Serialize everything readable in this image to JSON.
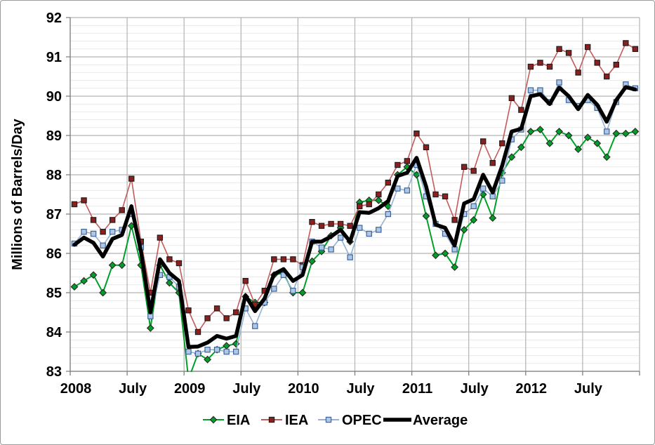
{
  "chart_data": {
    "type": "line",
    "title": "",
    "ylabel": "Millions of Barrels/Day",
    "xlabel": "",
    "ylim": [
      83,
      92
    ],
    "y_major_ticks": [
      "92",
      "91",
      "90",
      "89",
      "88",
      "87",
      "86",
      "85",
      "84",
      "83"
    ],
    "y_minor_step": 0.2,
    "grid": "major-and-minor-horizontal, major-vertical",
    "legend_position": "bottom-center",
    "x_tick_labels": [
      "2008",
      "July",
      "2009",
      "July",
      "2010",
      "July",
      "2011",
      "July",
      "2012",
      "July"
    ],
    "x_months": [
      "2008-01",
      "2008-02",
      "2008-03",
      "2008-04",
      "2008-05",
      "2008-06",
      "2008-07",
      "2008-08",
      "2008-09",
      "2008-10",
      "2008-11",
      "2008-12",
      "2009-01",
      "2009-02",
      "2009-03",
      "2009-04",
      "2009-05",
      "2009-06",
      "2009-07",
      "2009-08",
      "2009-09",
      "2009-10",
      "2009-11",
      "2009-12",
      "2010-01",
      "2010-02",
      "2010-03",
      "2010-04",
      "2010-05",
      "2010-06",
      "2010-07",
      "2010-08",
      "2010-09",
      "2010-10",
      "2010-11",
      "2010-12",
      "2011-01",
      "2011-02",
      "2011-03",
      "2011-04",
      "2011-05",
      "2011-06",
      "2011-07",
      "2011-08",
      "2011-09",
      "2011-10",
      "2011-11",
      "2011-12",
      "2012-01",
      "2012-02",
      "2012-03",
      "2012-04",
      "2012-05",
      "2012-06",
      "2012-07",
      "2012-08",
      "2012-09",
      "2012-10",
      "2012-11",
      "2012-12"
    ],
    "series": [
      {
        "name": "EIA",
        "marker": "diamond",
        "line_color": "#00A028",
        "marker_fill": "#00A028",
        "marker_stroke": "#2d2d2d",
        "line_width": 2,
        "values": [
          85.15,
          85.3,
          85.45,
          85.0,
          85.7,
          85.7,
          86.7,
          85.7,
          84.1,
          85.7,
          85.25,
          85.0,
          82.8,
          83.45,
          83.3,
          83.55,
          83.65,
          83.7,
          84.9,
          84.75,
          84.75,
          85.45,
          85.5,
          85.0,
          85.0,
          85.8,
          86.05,
          86.45,
          86.65,
          86.3,
          87.3,
          87.35,
          87.35,
          87.2,
          88.0,
          88.2,
          88.0,
          86.95,
          85.95,
          86.0,
          85.65,
          86.6,
          86.85,
          87.5,
          86.9,
          88.05,
          88.45,
          88.7,
          89.1,
          89.15,
          88.8,
          89.1,
          89.0,
          88.65,
          88.95,
          88.8,
          88.45,
          89.05,
          89.05,
          89.1
        ]
      },
      {
        "name": "IEA",
        "marker": "square",
        "line_color": "#C45B5B",
        "marker_fill": "#8E1F1F",
        "marker_stroke": "#1f1f1f",
        "line_width": 1.6,
        "values": [
          87.25,
          87.35,
          86.85,
          86.55,
          86.85,
          87.1,
          87.9,
          86.3,
          85.0,
          86.4,
          85.85,
          85.75,
          84.55,
          84.0,
          84.35,
          84.6,
          84.35,
          84.5,
          85.3,
          84.7,
          85.05,
          85.85,
          85.85,
          85.85,
          85.7,
          86.8,
          86.7,
          86.75,
          86.75,
          86.7,
          87.2,
          87.25,
          87.5,
          87.8,
          88.25,
          88.35,
          89.05,
          88.7,
          87.5,
          87.45,
          86.85,
          88.2,
          88.1,
          88.85,
          88.3,
          88.8,
          89.95,
          89.65,
          90.75,
          90.85,
          90.75,
          91.2,
          91.1,
          90.6,
          91.25,
          90.85,
          90.5,
          90.8,
          91.35,
          91.2
        ]
      },
      {
        "name": "OPEC",
        "marker": "square",
        "line_color": "#94B2D6",
        "marker_fill": "#AEC7E4",
        "marker_stroke": "#3C649B",
        "line_width": 1.6,
        "values": [
          86.25,
          86.55,
          86.5,
          86.2,
          86.55,
          86.6,
          87.0,
          86.15,
          84.4,
          85.45,
          85.4,
          85.15,
          83.5,
          83.45,
          83.55,
          83.55,
          83.5,
          83.5,
          84.6,
          84.15,
          84.75,
          85.1,
          85.45,
          85.05,
          85.65,
          86.3,
          86.15,
          86.1,
          86.4,
          85.9,
          86.65,
          86.5,
          86.6,
          87.0,
          87.65,
          87.6,
          88.25,
          87.45,
          86.75,
          86.5,
          86.1,
          87.0,
          87.2,
          87.65,
          87.45,
          87.85,
          88.9,
          89.15,
          90.15,
          90.15,
          89.85,
          90.35,
          89.9,
          89.75,
          89.9,
          89.7,
          89.1,
          89.85,
          90.3,
          90.2
        ]
      },
      {
        "name": "Average",
        "marker": "none",
        "line_color": "#000000",
        "marker_fill": "#000000",
        "marker_stroke": "#000000",
        "line_width": 5.5,
        "values": [
          86.22,
          86.4,
          86.27,
          85.92,
          86.37,
          86.47,
          87.2,
          86.05,
          84.5,
          85.85,
          85.5,
          85.3,
          83.62,
          83.63,
          83.73,
          83.9,
          83.83,
          83.9,
          84.93,
          84.53,
          84.85,
          85.47,
          85.6,
          85.3,
          85.45,
          86.3,
          86.3,
          86.43,
          86.6,
          86.3,
          87.05,
          87.03,
          87.15,
          87.33,
          87.97,
          88.05,
          88.43,
          87.7,
          86.73,
          86.65,
          86.2,
          87.27,
          87.38,
          88.0,
          87.55,
          88.23,
          89.1,
          89.17,
          90.0,
          90.05,
          89.8,
          90.22,
          90.0,
          89.67,
          90.03,
          89.78,
          89.35,
          89.9,
          90.23,
          90.17
        ]
      }
    ],
    "legend": [
      "EIA",
      "IEA",
      "OPEC",
      "Average"
    ],
    "colors": {
      "major_grid": "#b3b3b3",
      "minor_grid": "#e9e9e9",
      "axis_line": "#808080",
      "text": "#000000",
      "background": "#ffffff"
    }
  }
}
